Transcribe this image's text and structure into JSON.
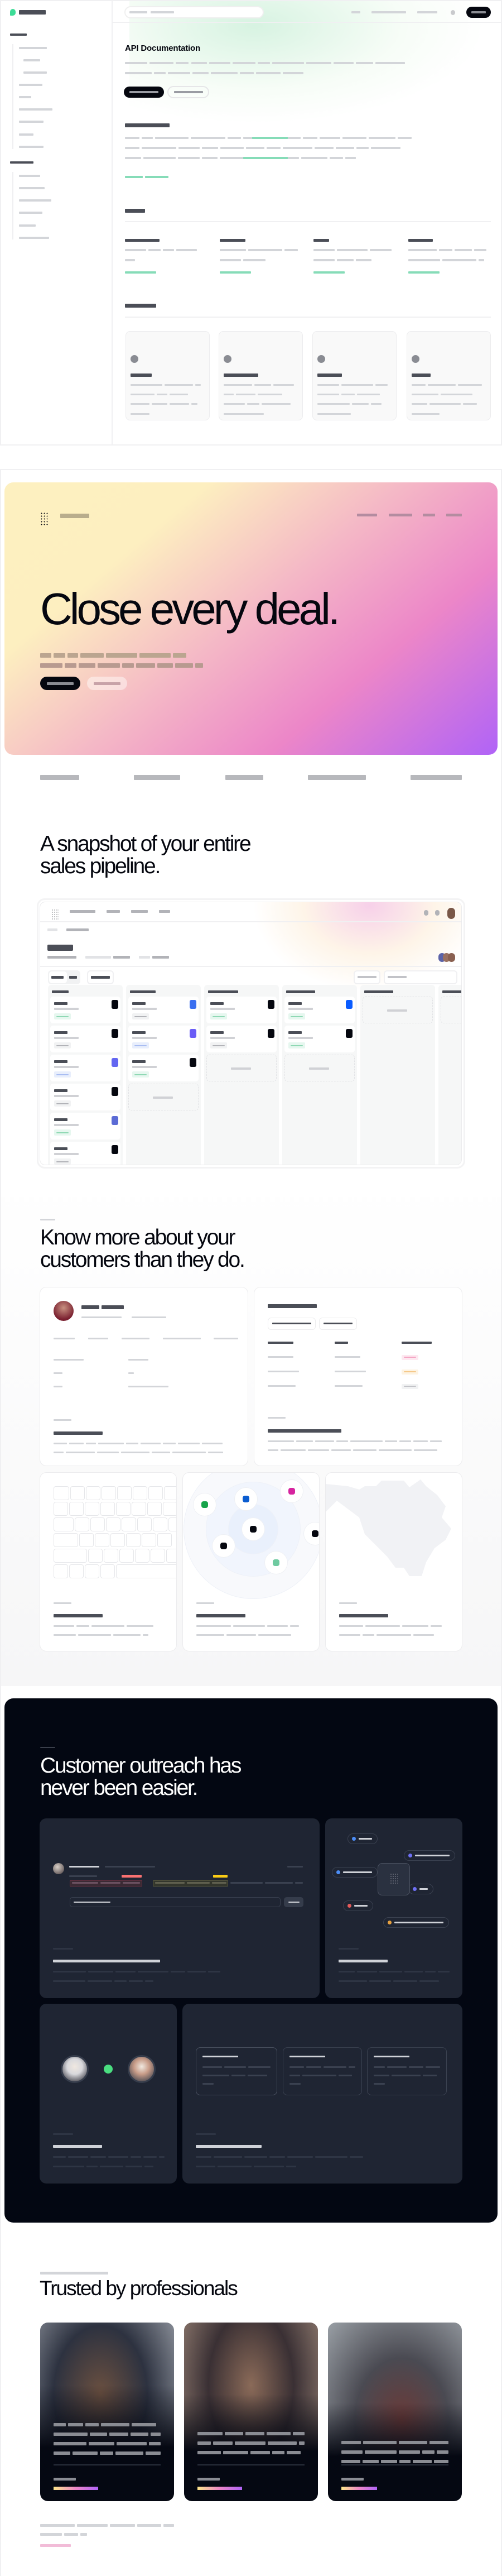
{
  "docs": {
    "page_title": "API Documentation",
    "brand_color": "#3ddc97",
    "link_color": "#86dcb8",
    "icons": [
      "logo-icon",
      "search-icon",
      "user-avatar-icon"
    ]
  },
  "hero": {
    "headline": "Close every deal.",
    "gradient": [
      "#fdf0c0",
      "#ec86c8",
      "#b063f7"
    ]
  },
  "pipeline": {
    "heading": "A snapshot of your entire\nsales pipeline.",
    "card_icon_colors": [
      "#05070f",
      "#3b6ff0",
      "#6a5cf6",
      "#5b6bd5",
      "#0a5cff"
    ]
  },
  "insights": {
    "heading": "Know more about your\ncustomers than they do.",
    "node_colors": [
      "#16a34a",
      "#0a5cd0",
      "#d6249f",
      "#05070f",
      "#6fcaa0"
    ]
  },
  "outreach": {
    "heading": "Customer outreach has\nnever been easier.",
    "status_color": "#4ade80"
  },
  "testimonials": {
    "heading": "Trusted by professionals"
  }
}
